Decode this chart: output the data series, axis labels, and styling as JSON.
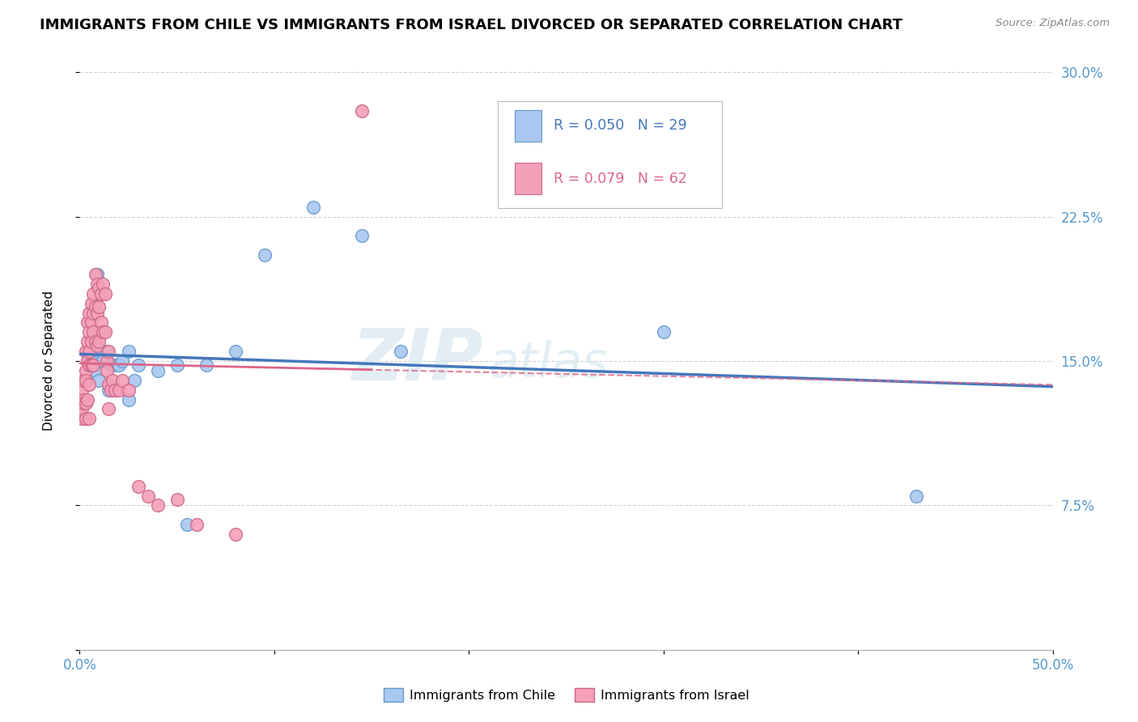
{
  "title": "IMMIGRANTS FROM CHILE VS IMMIGRANTS FROM ISRAEL DIVORCED OR SEPARATED CORRELATION CHART",
  "source": "Source: ZipAtlas.com",
  "ylabel_label": "Divorced or Separated",
  "xlim": [
    0.0,
    0.5
  ],
  "ylim": [
    0.0,
    0.3
  ],
  "xticks": [
    0.0,
    0.1,
    0.2,
    0.3,
    0.4,
    0.5
  ],
  "yticks": [
    0.0,
    0.075,
    0.15,
    0.225,
    0.3
  ],
  "ytick_labels": [
    "",
    "7.5%",
    "15.0%",
    "22.5%",
    "30.0%"
  ],
  "xtick_labels": [
    "0.0%",
    "",
    "",
    "",
    "",
    "50.0%"
  ],
  "grid_color": "#d0d0d0",
  "background_color": "#ffffff",
  "watermark_zip": "ZIP",
  "watermark_atlas": "atlas",
  "chile_color": "#a8c8f0",
  "israel_color": "#f4a0b8",
  "chile_edge_color": "#6699cc",
  "israel_edge_color": "#cc6688",
  "chile_line_color": "#4477bb",
  "israel_line_color": "#dd6688",
  "legend_chile_R": "0.050",
  "legend_chile_N": "29",
  "legend_israel_R": "0.079",
  "legend_israel_N": "62",
  "right_axis_color": "#5599cc",
  "title_fontsize": 13,
  "label_fontsize": 11,
  "tick_fontsize": 12,
  "chile_scatter_x": [
    0.003,
    0.005,
    0.006,
    0.008,
    0.009,
    0.01,
    0.01,
    0.012,
    0.014,
    0.015,
    0.016,
    0.018,
    0.02,
    0.022,
    0.025,
    0.025,
    0.028,
    0.03,
    0.04,
    0.05,
    0.055,
    0.065,
    0.08,
    0.095,
    0.12,
    0.145,
    0.165,
    0.3,
    0.43
  ],
  "chile_scatter_y": [
    0.14,
    0.148,
    0.152,
    0.145,
    0.195,
    0.155,
    0.14,
    0.15,
    0.155,
    0.135,
    0.148,
    0.148,
    0.148,
    0.15,
    0.155,
    0.13,
    0.14,
    0.148,
    0.145,
    0.148,
    0.065,
    0.148,
    0.155,
    0.205,
    0.23,
    0.215,
    0.155,
    0.165,
    0.08
  ],
  "israel_scatter_x": [
    0.001,
    0.001,
    0.001,
    0.002,
    0.002,
    0.002,
    0.003,
    0.003,
    0.003,
    0.003,
    0.003,
    0.004,
    0.004,
    0.004,
    0.004,
    0.005,
    0.005,
    0.005,
    0.005,
    0.005,
    0.005,
    0.006,
    0.006,
    0.006,
    0.006,
    0.007,
    0.007,
    0.007,
    0.007,
    0.008,
    0.008,
    0.008,
    0.009,
    0.009,
    0.009,
    0.01,
    0.01,
    0.01,
    0.011,
    0.011,
    0.012,
    0.012,
    0.013,
    0.013,
    0.014,
    0.014,
    0.015,
    0.015,
    0.015,
    0.016,
    0.017,
    0.018,
    0.02,
    0.022,
    0.025,
    0.03,
    0.035,
    0.04,
    0.05,
    0.06,
    0.08,
    0.145
  ],
  "israel_scatter_y": [
    0.12,
    0.135,
    0.125,
    0.13,
    0.14,
    0.128,
    0.155,
    0.145,
    0.14,
    0.128,
    0.12,
    0.17,
    0.16,
    0.15,
    0.13,
    0.175,
    0.165,
    0.155,
    0.148,
    0.138,
    0.12,
    0.18,
    0.17,
    0.16,
    0.148,
    0.185,
    0.175,
    0.165,
    0.148,
    0.195,
    0.178,
    0.16,
    0.19,
    0.175,
    0.158,
    0.188,
    0.178,
    0.16,
    0.185,
    0.17,
    0.19,
    0.165,
    0.185,
    0.165,
    0.15,
    0.145,
    0.155,
    0.138,
    0.125,
    0.135,
    0.14,
    0.135,
    0.135,
    0.14,
    0.135,
    0.085,
    0.08,
    0.075,
    0.078,
    0.065,
    0.06,
    0.28
  ]
}
